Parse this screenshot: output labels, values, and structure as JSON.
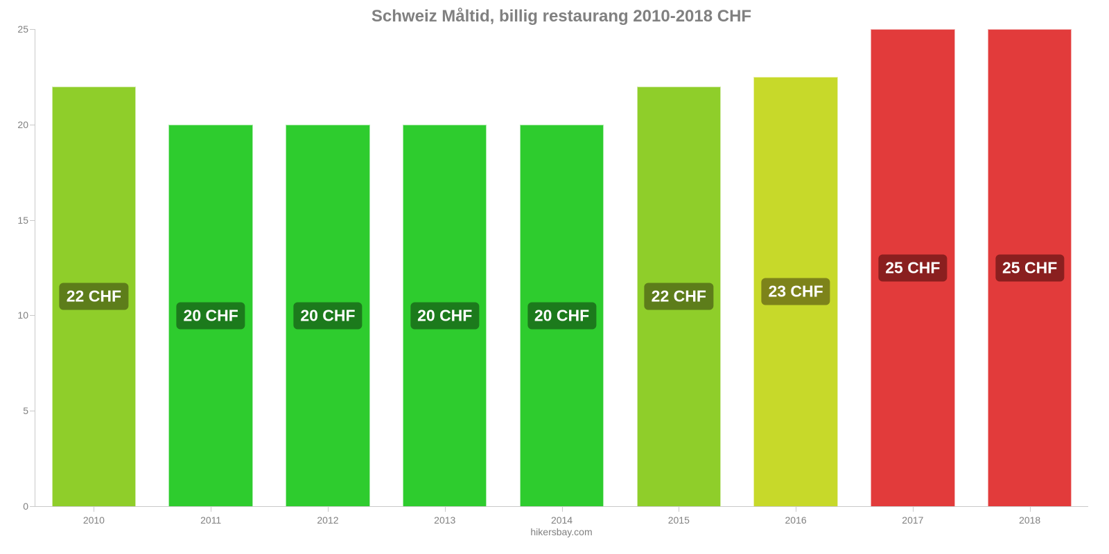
{
  "chart": {
    "type": "bar",
    "title": "Schweiz Måltid, billig restaurang 2010-2018 CHF",
    "title_fontsize": 24,
    "title_color": "#808080",
    "background_color": "#ffffff",
    "axis_color": "#c9c9c9",
    "tick_label_color": "#808080",
    "tick_label_fontsize": 14,
    "ylim": [
      0,
      25
    ],
    "ytick_step": 5,
    "yticks": [
      0,
      5,
      10,
      15,
      20,
      25
    ],
    "value_label_fontsize": 23,
    "value_label_text_color": "#ffffff",
    "value_label_position_pct": 50,
    "bar_width_pct": 72,
    "categories": [
      "2010",
      "2011",
      "2012",
      "2013",
      "2014",
      "2015",
      "2016",
      "2017",
      "2018"
    ],
    "values": [
      22,
      20,
      20,
      20,
      20,
      22,
      22.5,
      25,
      25
    ],
    "value_labels": [
      "22 CHF",
      "20 CHF",
      "20 CHF",
      "20 CHF",
      "20 CHF",
      "22 CHF",
      "23 CHF",
      "25 CHF",
      "25 CHF"
    ],
    "bar_colors": [
      "#8fce2a",
      "#2ecc2e",
      "#2ecc2e",
      "#2ecc2e",
      "#2ecc2e",
      "#8fce2a",
      "#c7d92a",
      "#e23b3b",
      "#e23b3b"
    ],
    "label_bg_colors": [
      "#5d7d1a",
      "#1c7a1c",
      "#1c7a1c",
      "#1c7a1c",
      "#1c7a1c",
      "#5d7d1a",
      "#7d831a",
      "#8a1f1f",
      "#8a1f1f"
    ],
    "footer": "hikersbay.com",
    "footer_color": "#808080",
    "footer_fontsize": 14
  }
}
